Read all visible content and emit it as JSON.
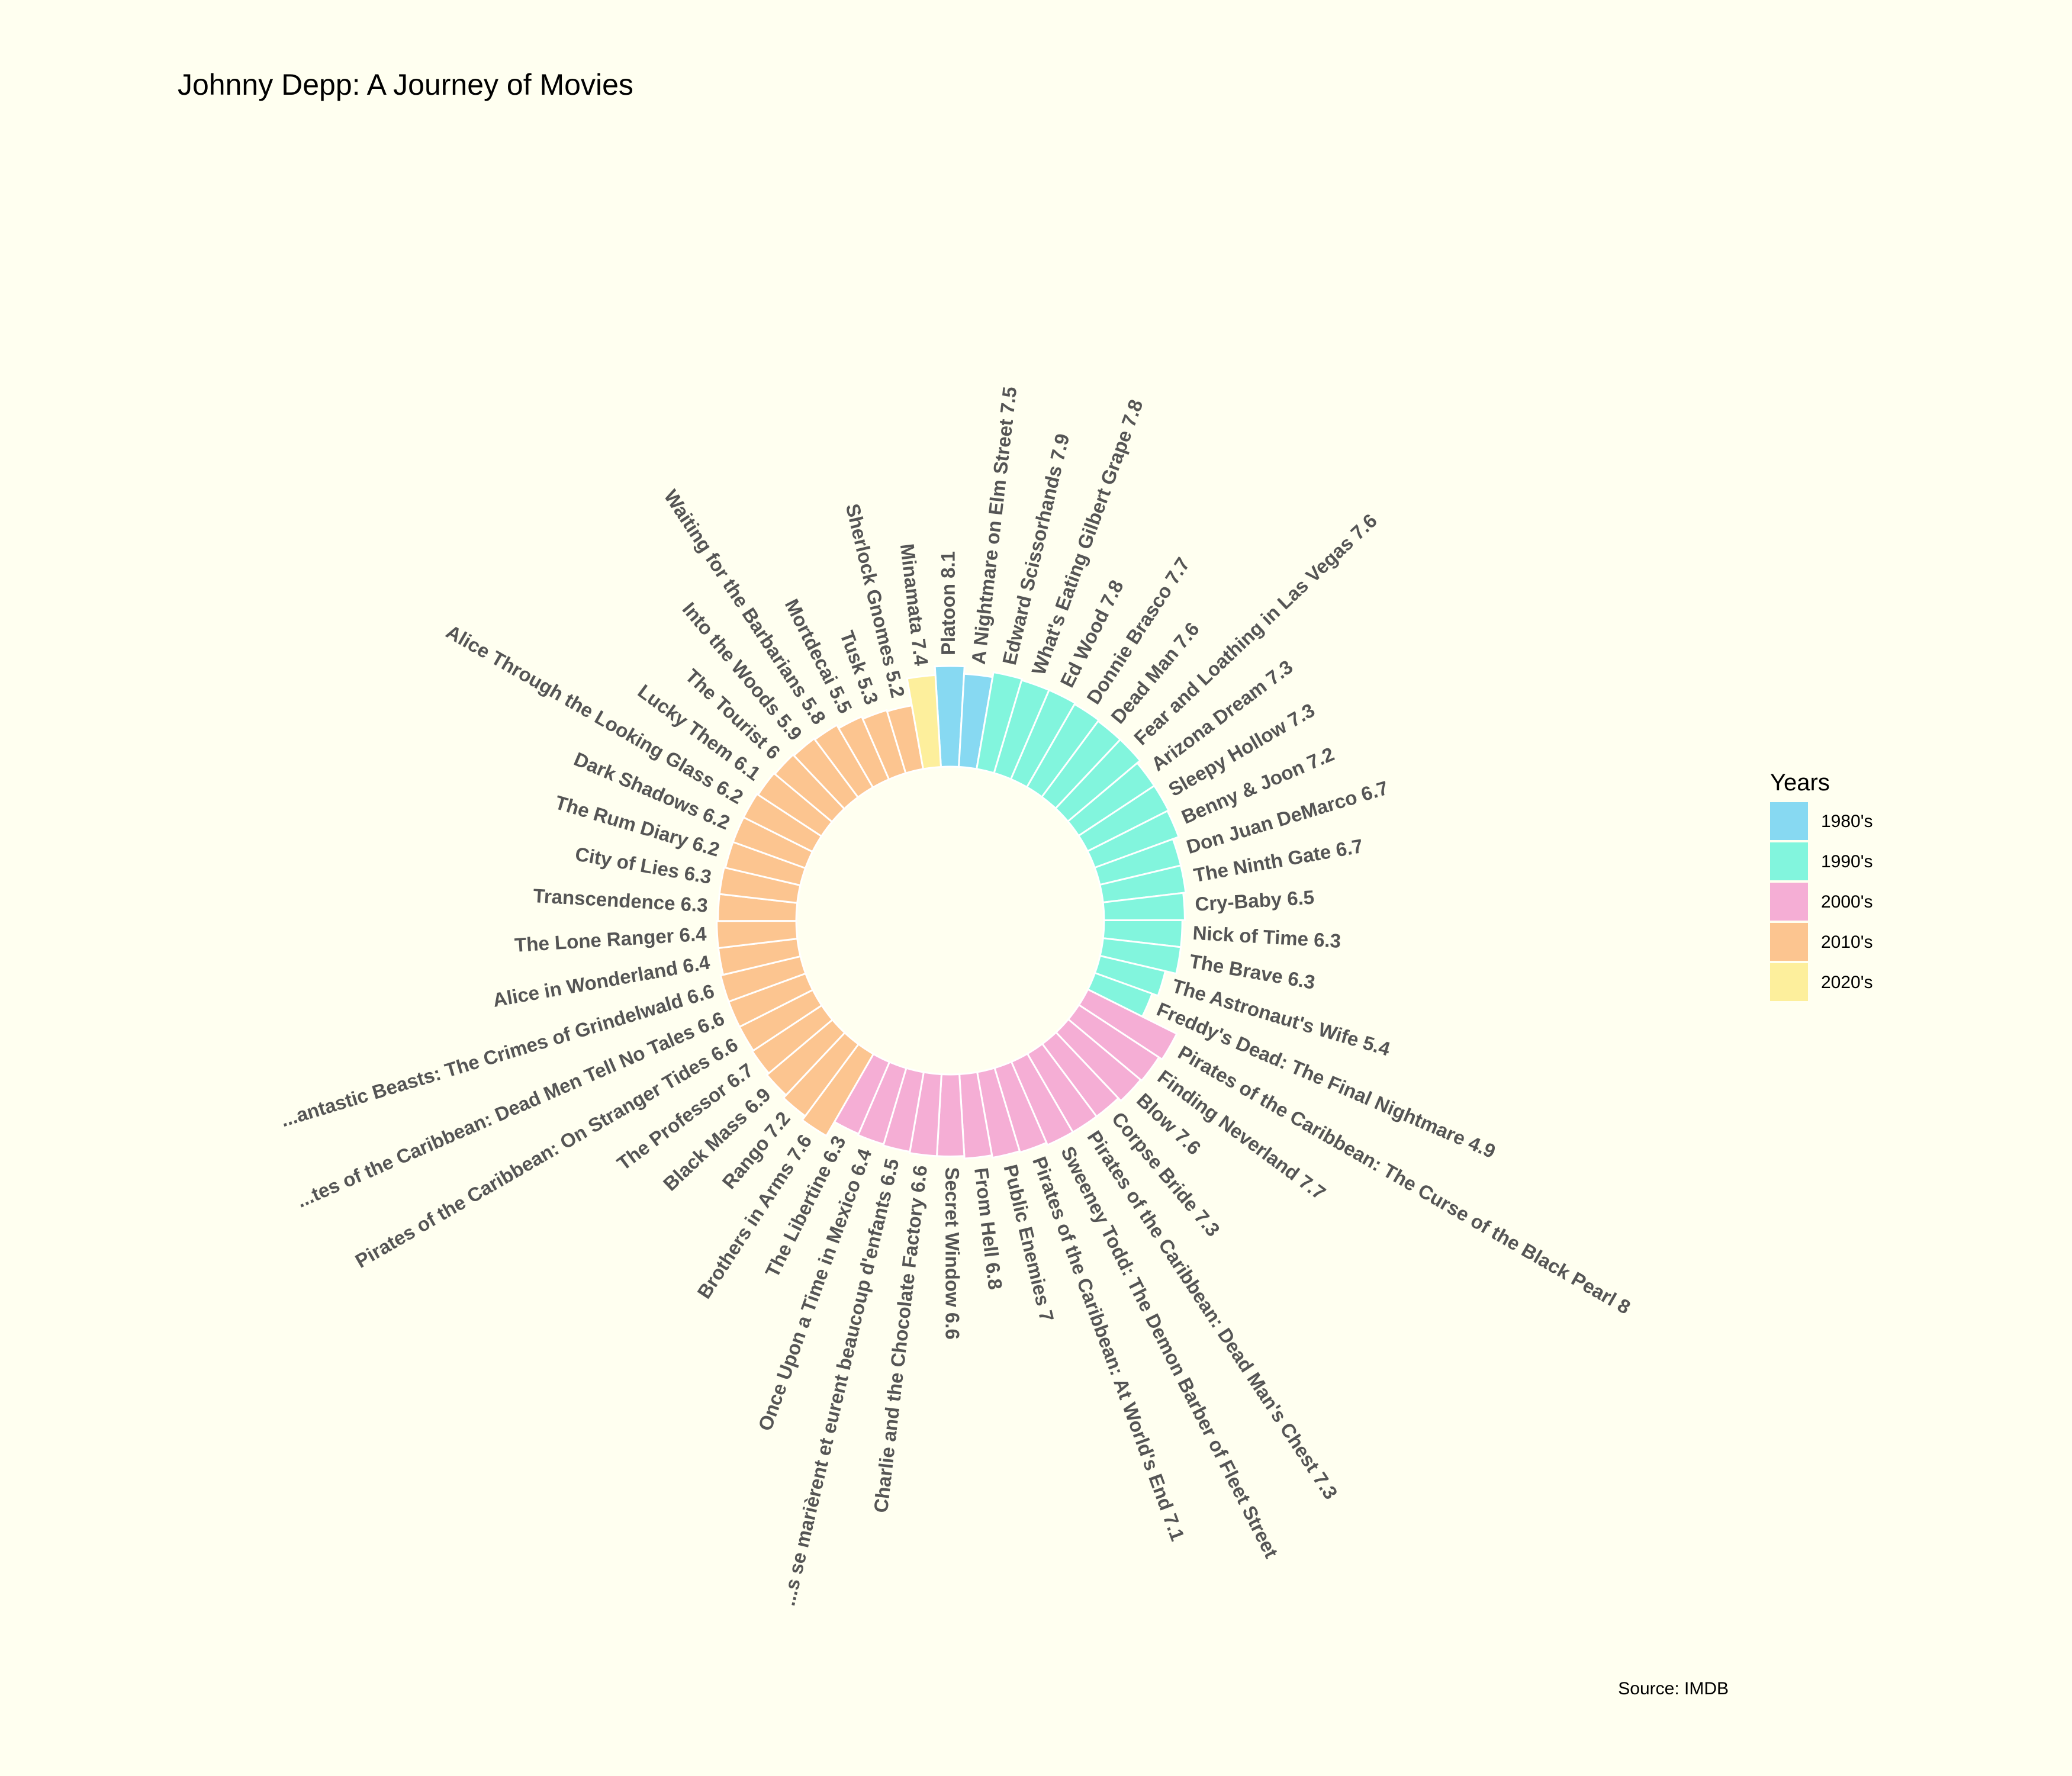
{
  "chart_data": {
    "type": "bar",
    "coord": "polar",
    "title": "Johnny Depp: A Journey of Movies",
    "caption": "Source: IMDB",
    "legend": {
      "title": "Years",
      "position": "right",
      "entries": [
        {
          "label": "1980's",
          "color": "#87d9f2"
        },
        {
          "label": "1990's",
          "color": "#82f5dd"
        },
        {
          "label": "2000's",
          "color": "#f5aed5"
        },
        {
          "label": "2010's",
          "color": "#fcc590"
        },
        {
          "label": "2020's",
          "color": "#fdef9c"
        }
      ]
    },
    "grid": false,
    "movies": [
      {
        "label": "Platoon 8.1",
        "decade": "1980's",
        "rating": 8.1
      },
      {
        "label": "A Nightmare on Elm Street 7.5",
        "decade": "1980's",
        "rating": 7.5
      },
      {
        "label": "Edward Scissorhands 7.9",
        "decade": "1990's",
        "rating": 7.9
      },
      {
        "label": "What's Eating Gilbert Grape 7.8",
        "decade": "1990's",
        "rating": 7.8
      },
      {
        "label": "Ed Wood 7.8",
        "decade": "1990's",
        "rating": 7.8
      },
      {
        "label": "Donnie Brasco 7.7",
        "decade": "1990's",
        "rating": 7.7
      },
      {
        "label": "Dead Man 7.6",
        "decade": "1990's",
        "rating": 7.6
      },
      {
        "label": "Fear and Loathing in Las Vegas 7.6",
        "decade": "1990's",
        "rating": 7.6
      },
      {
        "label": "Arizona Dream 7.3",
        "decade": "1990's",
        "rating": 7.3
      },
      {
        "label": "Sleepy Hollow 7.3",
        "decade": "1990's",
        "rating": 7.3
      },
      {
        "label": "Benny & Joon 7.2",
        "decade": "1990's",
        "rating": 7.2
      },
      {
        "label": "Don Juan DeMarco 6.7",
        "decade": "1990's",
        "rating": 6.7
      },
      {
        "label": "The Ninth Gate 6.7",
        "decade": "1990's",
        "rating": 6.7
      },
      {
        "label": "Cry-Baby 6.5",
        "decade": "1990's",
        "rating": 6.5
      },
      {
        "label": "Nick of Time 6.3",
        "decade": "1990's",
        "rating": 6.3
      },
      {
        "label": "The Brave 6.3",
        "decade": "1990's",
        "rating": 6.3
      },
      {
        "label": "The Astronaut's Wife 5.4",
        "decade": "1990's",
        "rating": 5.4
      },
      {
        "label": "Freddy's Dead: The Final Nightmare 4.9",
        "decade": "1990's",
        "rating": 4.9
      },
      {
        "label": "Pirates of the Caribbean: The Curse of the Black Pearl 8",
        "decade": "2000's",
        "rating": 8
      },
      {
        "label": "Finding Neverland 7.7",
        "decade": "2000's",
        "rating": 7.7
      },
      {
        "label": "Blow 7.6",
        "decade": "2000's",
        "rating": 7.6
      },
      {
        "label": "Corpse Bride 7.3",
        "decade": "2000's",
        "rating": 7.3
      },
      {
        "label": "Pirates of the Caribbean: Dead Man's Chest 7.3",
        "decade": "2000's",
        "rating": 7.3
      },
      {
        "label": "Sweeney Todd: The Demon Barber of Fleet Street",
        "decade": "2000's",
        "rating": 7.3
      },
      {
        "label": "Pirates of the Caribbean: At World's End 7.1",
        "decade": "2000's",
        "rating": 7.1
      },
      {
        "label": "Public Enemies 7",
        "decade": "2000's",
        "rating": 7
      },
      {
        "label": "From Hell 6.8",
        "decade": "2000's",
        "rating": 6.8
      },
      {
        "label": "Secret Window 6.6",
        "decade": "2000's",
        "rating": 6.6
      },
      {
        "label": "Charlie and the Chocolate Factory 6.6",
        "decade": "2000's",
        "rating": 6.6
      },
      {
        "label": "...s se marièrent et eurent beaucoup d'enfants 6.5",
        "decade": "2000's",
        "rating": 6.5
      },
      {
        "label": "Once Upon a Time in Mexico 6.4",
        "decade": "2000's",
        "rating": 6.4
      },
      {
        "label": "The Libertine 6.3",
        "decade": "2000's",
        "rating": 6.3
      },
      {
        "label": "Brothers in Arms 7.6",
        "decade": "2010's",
        "rating": 7.6
      },
      {
        "label": "Rango 7.2",
        "decade": "2010's",
        "rating": 7.2
      },
      {
        "label": "Black Mass 6.9",
        "decade": "2010's",
        "rating": 6.9
      },
      {
        "label": "The Professor 6.7",
        "decade": "2010's",
        "rating": 6.7
      },
      {
        "label": "Pirates of the Caribbean: On Stranger Tides 6.6",
        "decade": "2010's",
        "rating": 6.6
      },
      {
        "label": "...tes of the Caribbean: Dead Men Tell No Tales 6.6",
        "decade": "2010's",
        "rating": 6.6
      },
      {
        "label": "...antastic Beasts: The Crimes of Grindelwald 6.6",
        "decade": "2010's",
        "rating": 6.6
      },
      {
        "label": "Alice in Wonderland 6.4",
        "decade": "2010's",
        "rating": 6.4
      },
      {
        "label": "The Lone Ranger 6.4",
        "decade": "2010's",
        "rating": 6.4
      },
      {
        "label": "Transcendence 6.3",
        "decade": "2010's",
        "rating": 6.3
      },
      {
        "label": "City of Lies 6.3",
        "decade": "2010's",
        "rating": 6.3
      },
      {
        "label": "The Rum Diary 6.2",
        "decade": "2010's",
        "rating": 6.2
      },
      {
        "label": "Dark Shadows 6.2",
        "decade": "2010's",
        "rating": 6.2
      },
      {
        "label": "Alice Through the Looking Glass 6.2",
        "decade": "2010's",
        "rating": 6.2
      },
      {
        "label": "Lucky Them 6.1",
        "decade": "2010's",
        "rating": 6.1
      },
      {
        "label": "The Tourist 6",
        "decade": "2010's",
        "rating": 6
      },
      {
        "label": "Into the Woods 5.9",
        "decade": "2010's",
        "rating": 5.9
      },
      {
        "label": "Waiting for the Barbarians 5.8",
        "decade": "2010's",
        "rating": 5.8
      },
      {
        "label": "Mortdecai 5.5",
        "decade": "2010's",
        "rating": 5.5
      },
      {
        "label": "Tusk 5.3",
        "decade": "2010's",
        "rating": 5.3
      },
      {
        "label": "Sherlock Gnomes 5.2",
        "decade": "2010's",
        "rating": 5.2
      },
      {
        "label": "Minamata 7.4",
        "decade": "2020's",
        "rating": 7.4
      }
    ]
  }
}
